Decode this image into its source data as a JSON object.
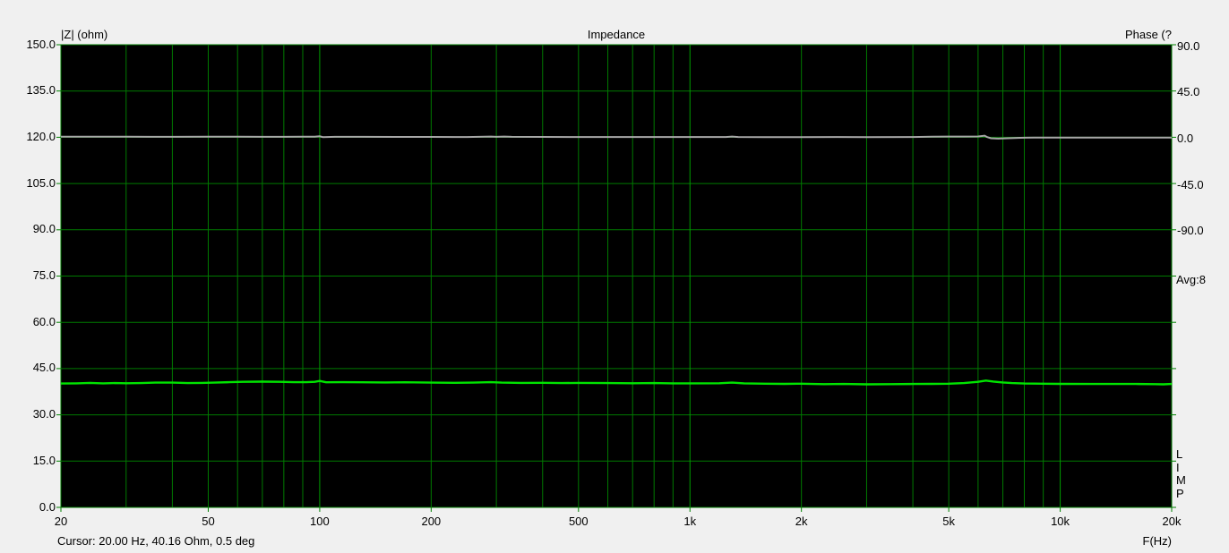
{
  "header": {
    "left_axis_title": "|Z| (ohm)",
    "title": "Impedance",
    "right_axis_title": "Phase (?"
  },
  "right_panel": {
    "avg_label": "Avg:8",
    "app_letters": [
      "L",
      "I",
      "M",
      "P"
    ]
  },
  "footer": {
    "cursor_readout": "Cursor: 20.00 Hz, 40.16 Ohm, 0.5 deg",
    "x_axis_title": "F(Hz)"
  },
  "chart_data": {
    "type": "line",
    "title": "Impedance",
    "x_scale": "log",
    "xlabel": "F(Hz)",
    "x_range": [
      20,
      20000
    ],
    "x_tick_labels": [
      {
        "f": 20,
        "label": "20"
      },
      {
        "f": 50,
        "label": "50"
      },
      {
        "f": 100,
        "label": "100"
      },
      {
        "f": 200,
        "label": "200"
      },
      {
        "f": 500,
        "label": "500"
      },
      {
        "f": 1000,
        "label": "1k"
      },
      {
        "f": 2000,
        "label": "2k"
      },
      {
        "f": 5000,
        "label": "5k"
      },
      {
        "f": 10000,
        "label": "10k"
      },
      {
        "f": 20000,
        "label": "20k"
      }
    ],
    "left_axis": {
      "title": "|Z| (ohm)",
      "unit": "ohm",
      "range": [
        0,
        150
      ],
      "step": 15,
      "tick_labels": [
        "150.0",
        "135.0",
        "120.0",
        "105.0",
        "90.0",
        "75.0",
        "60.0",
        "45.0",
        "30.0",
        "15.0",
        "0.0"
      ]
    },
    "right_axis": {
      "title": "Phase (?",
      "unit": "deg",
      "tick_labels": [
        "90.0",
        "45.0",
        "0.0",
        "-45.0",
        "-90.0"
      ],
      "tick_values": [
        90,
        45,
        0,
        -45,
        -90
      ],
      "zero_deg_at_ohm": 120,
      "deg_per_ohm_div": 45
    },
    "plot_bg": "#000000",
    "grid": {
      "minor_color": "#007a00",
      "major_color": "#009e00",
      "major_v_lines": [
        100,
        1000,
        10000
      ],
      "h_step_ohm": 15,
      "tick_color": "#008000"
    },
    "series": [
      {
        "name": "impedance",
        "color": "#00e400",
        "width": 2.4,
        "unit": "ohm",
        "axis": "left",
        "points": [
          [
            20,
            40.16
          ],
          [
            22,
            40.2
          ],
          [
            24,
            40.35
          ],
          [
            26,
            40.2
          ],
          [
            28,
            40.3
          ],
          [
            30,
            40.25
          ],
          [
            33,
            40.3
          ],
          [
            36,
            40.45
          ],
          [
            40,
            40.45
          ],
          [
            44,
            40.3
          ],
          [
            48,
            40.35
          ],
          [
            52,
            40.45
          ],
          [
            57,
            40.6
          ],
          [
            62,
            40.7
          ],
          [
            70,
            40.75
          ],
          [
            78,
            40.7
          ],
          [
            85,
            40.6
          ],
          [
            92,
            40.6
          ],
          [
            97,
            40.7
          ],
          [
            100,
            41.0
          ],
          [
            104,
            40.55
          ],
          [
            115,
            40.6
          ],
          [
            130,
            40.55
          ],
          [
            150,
            40.5
          ],
          [
            170,
            40.55
          ],
          [
            200,
            40.45
          ],
          [
            230,
            40.4
          ],
          [
            260,
            40.45
          ],
          [
            290,
            40.6
          ],
          [
            310,
            40.45
          ],
          [
            350,
            40.35
          ],
          [
            400,
            40.4
          ],
          [
            450,
            40.3
          ],
          [
            500,
            40.35
          ],
          [
            600,
            40.3
          ],
          [
            700,
            40.25
          ],
          [
            800,
            40.3
          ],
          [
            900,
            40.2
          ],
          [
            1000,
            40.2
          ],
          [
            1200,
            40.25
          ],
          [
            1300,
            40.45
          ],
          [
            1400,
            40.2
          ],
          [
            1600,
            40.1
          ],
          [
            1800,
            40.05
          ],
          [
            2000,
            40.1
          ],
          [
            2300,
            39.95
          ],
          [
            2600,
            40.0
          ],
          [
            3000,
            39.9
          ],
          [
            3500,
            39.95
          ],
          [
            4000,
            40.0
          ],
          [
            4500,
            40.05
          ],
          [
            5000,
            40.1
          ],
          [
            5500,
            40.3
          ],
          [
            6000,
            40.7
          ],
          [
            6300,
            41.1
          ],
          [
            6600,
            40.8
          ],
          [
            7000,
            40.5
          ],
          [
            7400,
            40.3
          ],
          [
            8000,
            40.15
          ],
          [
            9000,
            40.1
          ],
          [
            10000,
            40.05
          ],
          [
            12000,
            40.0
          ],
          [
            14000,
            40.0
          ],
          [
            16000,
            40.0
          ],
          [
            18000,
            39.95
          ],
          [
            19000,
            39.9
          ],
          [
            20000,
            40.0
          ]
        ]
      },
      {
        "name": "phase",
        "color": "#a8a8a8",
        "width": 2,
        "unit": "deg",
        "axis": "right",
        "points": [
          [
            20,
            0.5
          ],
          [
            25,
            0.6
          ],
          [
            30,
            0.5
          ],
          [
            35,
            0.4
          ],
          [
            40,
            0.4
          ],
          [
            50,
            0.5
          ],
          [
            60,
            0.5
          ],
          [
            70,
            0.4
          ],
          [
            80,
            0.4
          ],
          [
            90,
            0.5
          ],
          [
            97,
            0.6
          ],
          [
            100,
            1.0
          ],
          [
            102,
            0.2
          ],
          [
            110,
            0.4
          ],
          [
            130,
            0.4
          ],
          [
            160,
            0.35
          ],
          [
            200,
            0.35
          ],
          [
            250,
            0.3
          ],
          [
            290,
            0.7
          ],
          [
            300,
            0.4
          ],
          [
            315,
            0.7
          ],
          [
            330,
            0.4
          ],
          [
            400,
            0.35
          ],
          [
            500,
            0.3
          ],
          [
            700,
            0.3
          ],
          [
            900,
            0.3
          ],
          [
            1000,
            0.3
          ],
          [
            1250,
            0.3
          ],
          [
            1300,
            0.7
          ],
          [
            1350,
            0.25
          ],
          [
            1600,
            0.2
          ],
          [
            2000,
            0.2
          ],
          [
            2500,
            0.25
          ],
          [
            3000,
            0.2
          ],
          [
            4000,
            0.3
          ],
          [
            4500,
            0.6
          ],
          [
            5000,
            0.7
          ],
          [
            5500,
            0.7
          ],
          [
            6000,
            0.8
          ],
          [
            6250,
            1.6
          ],
          [
            6350,
            0.2
          ],
          [
            6500,
            -1.0
          ],
          [
            6800,
            -1.3
          ],
          [
            7200,
            -1.0
          ],
          [
            7800,
            -0.5
          ],
          [
            8500,
            -0.3
          ],
          [
            10000,
            -0.3
          ],
          [
            12000,
            -0.25
          ],
          [
            15000,
            -0.3
          ],
          [
            20000,
            -0.3
          ]
        ]
      }
    ],
    "cursor": {
      "freq_hz": 20.0,
      "impedance_ohm": 40.16,
      "phase_deg": 0.5
    },
    "averages": 8,
    "legend_position": "none",
    "grid_on": true
  }
}
